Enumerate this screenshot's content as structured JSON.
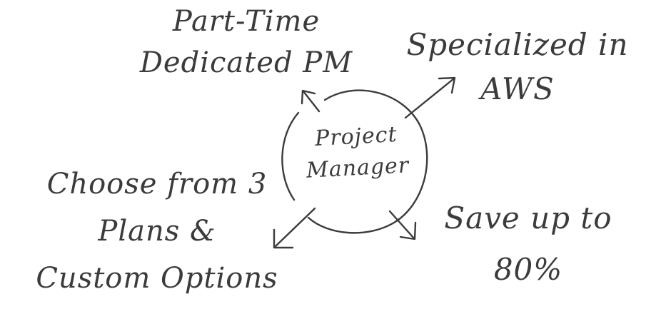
{
  "diagram": {
    "center": {
      "line1": "Project",
      "line2": "Manager"
    },
    "nodes": {
      "top": {
        "line1": "Part-Time",
        "line2": "Dedicated PM"
      },
      "right": {
        "line1": "Specialized in",
        "line2": "AWS"
      },
      "left": {
        "line1": "Choose from 3",
        "line2": "Plans &",
        "line3": "Custom Options"
      },
      "bottom": {
        "line1": "Save up to",
        "line2": "80%"
      }
    }
  }
}
